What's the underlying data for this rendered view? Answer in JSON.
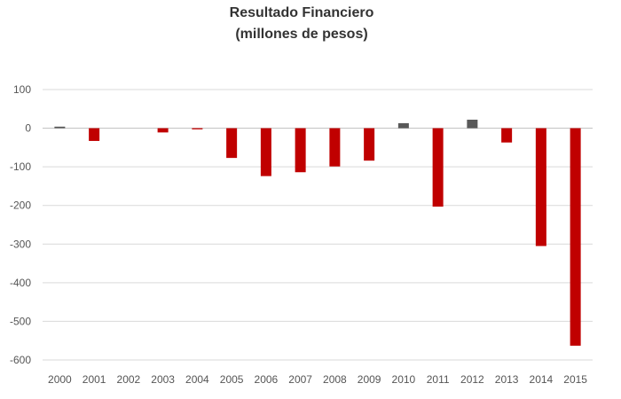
{
  "chart_data": {
    "type": "bar",
    "title": "Resultado Financiero",
    "subtitle": "(millones de pesos)",
    "xlabel": "",
    "ylabel": "",
    "categories": [
      "2000",
      "2001",
      "2002",
      "2003",
      "2004",
      "2005",
      "2006",
      "2007",
      "2008",
      "2009",
      "2010",
      "2011",
      "2012",
      "2013",
      "2014",
      "2015"
    ],
    "values": [
      4,
      -33,
      0,
      -11,
      -3,
      -77,
      -124,
      -114,
      -99,
      -84,
      13,
      -203,
      22,
      -37,
      -305,
      -563
    ],
    "ylim": [
      -600,
      100
    ],
    "yticks": [
      100,
      0,
      -100,
      -200,
      -300,
      -400,
      -500,
      -600
    ],
    "ytick_labels": [
      "100",
      "0",
      "-100",
      "-200",
      "-300",
      "-400",
      "-500",
      "-600"
    ],
    "grid": true,
    "legend": "none",
    "colors": {
      "negative": "#c00000",
      "positive": "#595959",
      "grid": "#d9d9d9",
      "axis": "#bfbfbf"
    }
  }
}
